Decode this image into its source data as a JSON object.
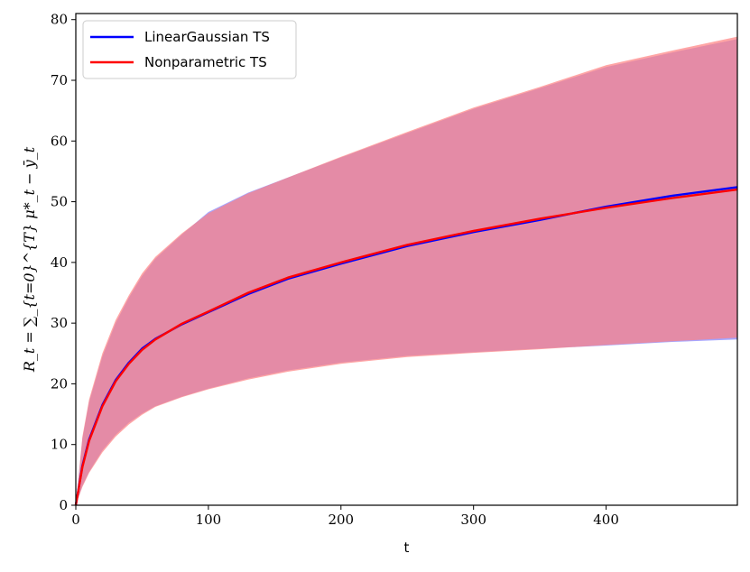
{
  "chart_data": {
    "type": "line",
    "xlabel": "t",
    "ylabel": "R_t = ∑_{t=0}^{T} μ*_t − ȳ_t",
    "xlim": [
      0,
      499
    ],
    "ylim": [
      0,
      81
    ],
    "xticks": [
      0,
      100,
      200,
      300,
      400
    ],
    "yticks": [
      0,
      10,
      20,
      30,
      40,
      50,
      60,
      70,
      80
    ],
    "legend_position": "top-left",
    "grid": false,
    "x": [
      0,
      5,
      10,
      20,
      30,
      40,
      50,
      60,
      80,
      100,
      130,
      160,
      200,
      250,
      300,
      350,
      400,
      450,
      499
    ],
    "series": [
      {
        "name": "LinearGaussian TS",
        "color": "#0000ff",
        "band_color": "#8080ff",
        "mean": [
          0,
          6.5,
          10.8,
          16.5,
          20.6,
          23.5,
          25.8,
          27.4,
          29.8,
          31.8,
          34.8,
          37.3,
          39.8,
          42.7,
          45.0,
          47.0,
          49.2,
          51.0,
          52.4
        ],
        "lower": [
          0,
          3.2,
          5.5,
          9.0,
          11.6,
          13.6,
          15.1,
          16.3,
          17.9,
          19.2,
          20.9,
          22.2,
          23.5,
          24.6,
          25.2,
          25.8,
          26.3,
          26.9,
          27.3
        ],
        "upper": [
          0,
          11.0,
          17.0,
          24.5,
          30.0,
          34.2,
          37.8,
          40.6,
          44.6,
          48.3,
          51.5,
          54.0,
          57.3,
          61.3,
          65.3,
          68.7,
          72.2,
          74.6,
          76.8
        ]
      },
      {
        "name": "Nonparametric TS",
        "color": "#ff0000",
        "band_color": "#ff8080",
        "mean": [
          0,
          6.3,
          10.6,
          16.3,
          20.4,
          23.3,
          25.6,
          27.3,
          29.9,
          31.9,
          35.0,
          37.5,
          40.0,
          42.9,
          45.2,
          47.2,
          49.0,
          50.6,
          52.0
        ],
        "lower": [
          0,
          3.0,
          5.3,
          8.7,
          11.3,
          13.3,
          14.9,
          16.2,
          17.8,
          19.1,
          20.7,
          22.0,
          23.3,
          24.4,
          25.1,
          25.7,
          26.4,
          27.0,
          27.6
        ],
        "upper": [
          0,
          11.3,
          17.4,
          25.0,
          30.5,
          34.6,
          38.2,
          40.9,
          44.8,
          48.1,
          51.4,
          54.0,
          57.4,
          61.5,
          65.5,
          68.9,
          72.5,
          74.9,
          77.2
        ]
      }
    ]
  }
}
